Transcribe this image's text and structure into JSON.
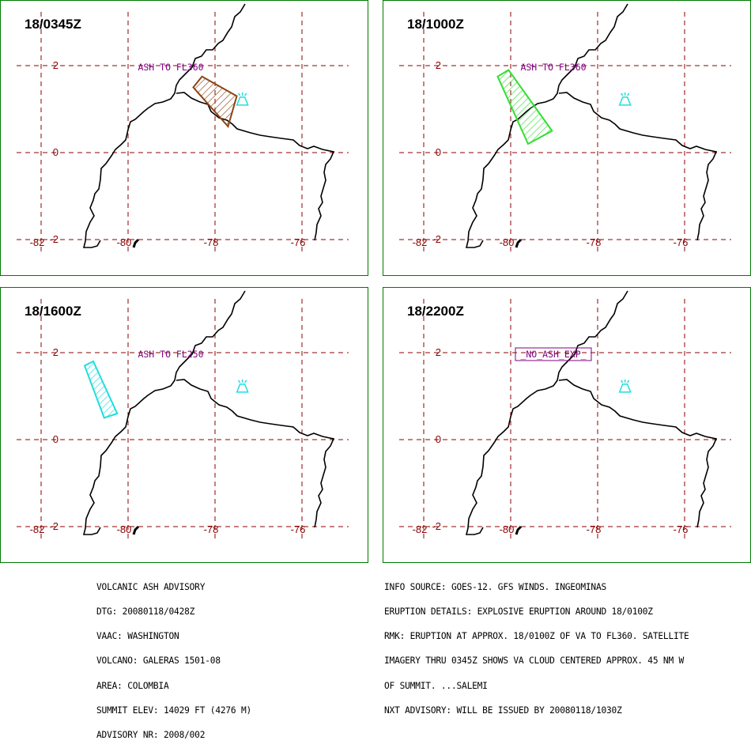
{
  "panels": [
    {
      "time": "18/0345Z",
      "label": "ASH TO FL360",
      "cloud_color": "#8B4513",
      "cloud": [
        [
          -78.3,
          1.75
        ],
        [
          -77.5,
          1.3
        ],
        [
          -77.7,
          0.6
        ],
        [
          -78.5,
          1.5
        ]
      ]
    },
    {
      "time": "18/1000Z",
      "label": "ASH TO FL360",
      "cloud_color": "#33dd33",
      "cloud": [
        [
          -80.3,
          1.75
        ],
        [
          -80.05,
          1.9
        ],
        [
          -79.05,
          0.5
        ],
        [
          -79.6,
          0.2
        ]
      ]
    },
    {
      "time": "18/1600Z",
      "label": "ASH TO FL250",
      "cloud_color": "#22dddd",
      "cloud": [
        [
          -81.0,
          1.7
        ],
        [
          -80.8,
          1.8
        ],
        [
          -80.25,
          0.6
        ],
        [
          -80.55,
          0.5
        ]
      ]
    },
    {
      "time": "18/2200Z",
      "label": "_NO_ASH_EXP_",
      "cloud_color": "",
      "cloud": []
    }
  ],
  "map": {
    "lat_ticks": [
      "2",
      "0",
      "-2"
    ],
    "lon_ticks": [
      "-82",
      "-80",
      "-78",
      "-76"
    ],
    "grid_color": "#8B0000",
    "label_color": "#800080",
    "volcano_color": "#22dddd",
    "volcano": [
      -77.37,
      1.22
    ]
  },
  "left_text": [
    "VOLCANIC ASH ADVISORY",
    "DTG: 20080118/0428Z",
    "VAAC: WASHINGTON",
    "VOLCANO: GALERAS 1501-08",
    "AREA: COLOMBIA",
    "SUMMIT ELEV: 14029 FT (4276 M)",
    "ADVISORY NR: 2008/002"
  ],
  "right_text": [
    "INFO SOURCE: GOES-12. GFS WINDS. INGEOMINAS",
    "ERUPTION DETAILS: EXPLOSIVE ERUPTION AROUND 18/0100Z",
    "RMK: ERUPTION AT APPROX. 18/0100Z OF VA TO FL360. SATELLITE",
    "IMAGERY THRU 0345Z SHOWS VA CLOUD CENTERED APPROX. 45 NM W",
    "OF SUMMIT. ...SALEMI",
    "NXT ADVISORY: WILL BE ISSUED BY 20080118/1030Z"
  ]
}
